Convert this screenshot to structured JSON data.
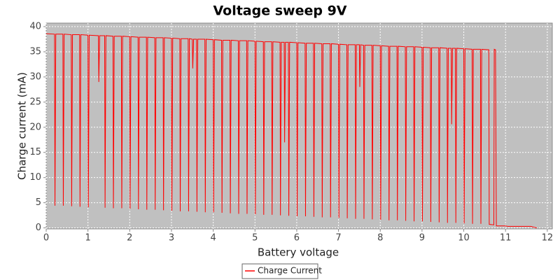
{
  "chart_data": {
    "type": "line",
    "title": "Voltage sweep 9V",
    "x_label": "Battery voltage",
    "y_label": "Charge current (mA)",
    "xlim": [
      0,
      12.12
    ],
    "ylim": [
      -0.2,
      40.7
    ],
    "xticks": [
      0,
      1,
      2,
      3,
      4,
      5,
      6,
      7,
      8,
      9,
      10,
      11,
      12
    ],
    "yticks": [
      0,
      5,
      10,
      15,
      20,
      25,
      30,
      35,
      40
    ],
    "grid": true,
    "legend": "bottom",
    "x": [
      0,
      0.2,
      0.21,
      0.23,
      0.4,
      0.41,
      0.43,
      0.6,
      0.61,
      0.63,
      0.8,
      0.81,
      0.83,
      1.0,
      1.01,
      1.03,
      1.25,
      1.26,
      1.28,
      1.4,
      1.41,
      1.43,
      1.6,
      1.61,
      1.63,
      1.8,
      1.81,
      1.83,
      2.0,
      2.01,
      2.03,
      2.2,
      2.21,
      2.23,
      2.4,
      2.41,
      2.43,
      2.6,
      2.61,
      2.63,
      2.8,
      2.81,
      2.83,
      3.0,
      3.01,
      3.03,
      3.2,
      3.21,
      3.23,
      3.4,
      3.41,
      3.43,
      3.5,
      3.51,
      3.53,
      3.6,
      3.61,
      3.63,
      3.8,
      3.81,
      3.83,
      4.0,
      4.01,
      4.03,
      4.2,
      4.21,
      4.23,
      4.4,
      4.41,
      4.43,
      4.6,
      4.61,
      4.63,
      4.8,
      4.81,
      4.83,
      5.0,
      5.01,
      5.03,
      5.2,
      5.21,
      5.23,
      5.4,
      5.41,
      5.43,
      5.6,
      5.61,
      5.63,
      5.7,
      5.71,
      5.73,
      5.8,
      5.81,
      5.83,
      6.0,
      6.01,
      6.03,
      6.2,
      6.21,
      6.23,
      6.4,
      6.41,
      6.43,
      6.6,
      6.61,
      6.63,
      6.8,
      6.81,
      6.83,
      7.0,
      7.01,
      7.03,
      7.2,
      7.21,
      7.23,
      7.4,
      7.41,
      7.43,
      7.5,
      7.51,
      7.53,
      7.6,
      7.61,
      7.63,
      7.8,
      7.81,
      7.83,
      8.0,
      8.01,
      8.03,
      8.2,
      8.21,
      8.23,
      8.4,
      8.41,
      8.43,
      8.6,
      8.61,
      8.63,
      8.8,
      8.81,
      8.83,
      9.0,
      9.01,
      9.03,
      9.2,
      9.21,
      9.23,
      9.4,
      9.41,
      9.43,
      9.6,
      9.61,
      9.63,
      9.7,
      9.71,
      9.73,
      9.8,
      9.81,
      9.83,
      10.0,
      10.01,
      10.03,
      10.2,
      10.21,
      10.23,
      10.4,
      10.41,
      10.43,
      10.6,
      10.61,
      10.72,
      10.73,
      10.76,
      10.78,
      11.0,
      11.05,
      11.6,
      11.75
    ],
    "series": [
      {
        "name": "Charge Current",
        "color": "#ff0000",
        "values": [
          38.6,
          38.5,
          4.4,
          38.5,
          38.5,
          4.4,
          38.5,
          38.4,
          4.3,
          38.4,
          38.4,
          4.2,
          38.4,
          38.3,
          4.1,
          38.3,
          38.2,
          29.0,
          38.2,
          38.2,
          4.0,
          38.2,
          38.1,
          3.9,
          38.1,
          38.1,
          3.9,
          38.1,
          38.0,
          3.8,
          38.0,
          37.9,
          3.7,
          37.9,
          37.9,
          3.6,
          37.9,
          37.8,
          3.6,
          37.8,
          37.8,
          3.5,
          37.8,
          37.7,
          3.4,
          37.7,
          37.6,
          3.3,
          37.6,
          37.6,
          3.3,
          37.6,
          37.5,
          31.7,
          37.5,
          37.5,
          3.2,
          37.5,
          37.5,
          3.1,
          37.5,
          37.4,
          3.1,
          37.4,
          37.3,
          3.0,
          37.3,
          37.3,
          2.9,
          37.3,
          37.2,
          2.8,
          37.2,
          37.2,
          2.8,
          37.2,
          37.1,
          2.7,
          37.1,
          37.0,
          2.6,
          37.0,
          37.0,
          2.6,
          37.0,
          36.9,
          2.5,
          36.9,
          36.9,
          17.0,
          36.9,
          36.9,
          2.4,
          36.9,
          36.8,
          2.3,
          36.8,
          36.7,
          2.3,
          36.7,
          36.7,
          2.2,
          36.7,
          36.6,
          2.1,
          36.6,
          36.6,
          2.1,
          36.6,
          36.5,
          2.0,
          36.5,
          36.4,
          1.9,
          36.4,
          36.4,
          1.8,
          36.4,
          36.4,
          28.0,
          36.4,
          36.3,
          1.8,
          36.3,
          36.3,
          1.7,
          36.3,
          36.2,
          1.6,
          36.2,
          36.1,
          1.5,
          36.1,
          36.1,
          1.5,
          36.1,
          36.0,
          1.4,
          36.0,
          36.0,
          1.3,
          36.0,
          35.9,
          1.3,
          35.9,
          35.8,
          1.2,
          35.8,
          35.8,
          1.1,
          35.8,
          35.7,
          1.0,
          35.7,
          35.7,
          20.6,
          35.7,
          35.7,
          1.0,
          35.7,
          35.6,
          0.9,
          35.6,
          35.5,
          0.8,
          35.5,
          35.5,
          0.8,
          35.5,
          35.4,
          0.7,
          0.6,
          35.5,
          35.4,
          0.4,
          0.4,
          0.3,
          0.3,
          0
        ]
      }
    ]
  }
}
